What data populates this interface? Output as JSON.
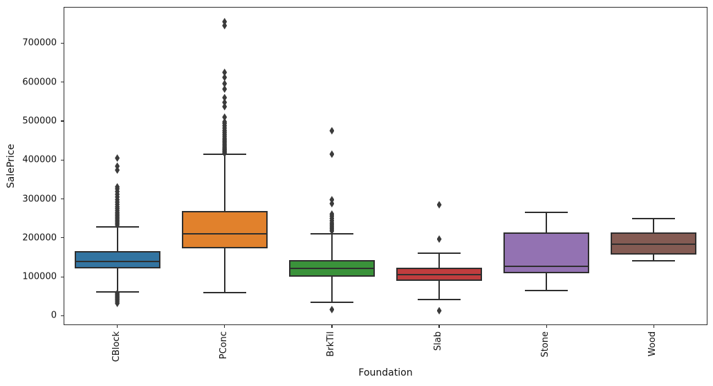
{
  "chart_data": {
    "type": "boxplot",
    "title": "",
    "xlabel": "Foundation",
    "ylabel": "SalePrice",
    "categories": [
      "CBlock",
      "PConc",
      "BrkTil",
      "Slab",
      "Stone",
      "Wood"
    ],
    "y_ticks": [
      0,
      100000,
      200000,
      300000,
      400000,
      500000,
      600000,
      700000
    ],
    "y_tick_labels": [
      "0",
      "100000",
      "200000",
      "300000",
      "400000",
      "500000",
      "600000",
      "700000"
    ],
    "ylim": [
      -24000,
      793000
    ],
    "grid": false,
    "legend": "none",
    "edge_color": "#2e2e2e",
    "flier_color": "#3b3b3b",
    "series": [
      {
        "name": "CBlock",
        "color": "#3274a1",
        "whisker_low": 61000,
        "q1": 122000,
        "median": 140000,
        "q3": 166000,
        "whisker_high": 229000,
        "outliers_high": [
          233000,
          237000,
          241000,
          245000,
          249000,
          253000,
          257000,
          261000,
          265000,
          270000,
          275000,
          280000,
          286000,
          292000,
          298000,
          305000,
          312000,
          319000,
          326000,
          331000,
          374000,
          384000,
          405000
        ],
        "outliers_low": [
          58000,
          55000,
          52000,
          49000,
          46000,
          43000,
          40000,
          36000,
          32000
        ]
      },
      {
        "name": "PConc",
        "color": "#e1812c",
        "whisker_low": 59000,
        "q1": 173000,
        "median": 211000,
        "q3": 269000,
        "whisker_high": 415000,
        "outliers_high": [
          417000,
          420000,
          423000,
          426000,
          429000,
          432000,
          436000,
          440000,
          444000,
          448000,
          452000,
          456000,
          461000,
          466000,
          471000,
          476000,
          482000,
          488000,
          494000,
          498000,
          510000,
          537000,
          548000,
          560000,
          582000,
          596000,
          612000,
          625000,
          745000,
          755000
        ],
        "outliers_low": []
      },
      {
        "name": "BrkTil",
        "color": "#3a923a",
        "whisker_low": 35000,
        "q1": 100000,
        "median": 122000,
        "q3": 143000,
        "whisker_high": 211000,
        "outliers_high": [
          218000,
          223000,
          228000,
          233000,
          238000,
          244000,
          250000,
          256000,
          261000,
          288000,
          298000,
          415000,
          475000
        ],
        "outliers_low": [
          16000
        ]
      },
      {
        "name": "Slab",
        "color": "#c03d3e",
        "whisker_low": 41000,
        "q1": 90000,
        "median": 106000,
        "q3": 124000,
        "whisker_high": 160000,
        "outliers_high": [
          197000,
          285000
        ],
        "outliers_low": [
          13000
        ]
      },
      {
        "name": "Stone",
        "color": "#9372b2",
        "whisker_low": 64000,
        "q1": 110000,
        "median": 127000,
        "q3": 214000,
        "whisker_high": 266000,
        "outliers_high": [],
        "outliers_low": []
      },
      {
        "name": "Wood",
        "color": "#845b53",
        "whisker_low": 142000,
        "q1": 158000,
        "median": 183000,
        "q3": 214000,
        "whisker_high": 250000,
        "outliers_high": [],
        "outliers_low": []
      }
    ]
  }
}
